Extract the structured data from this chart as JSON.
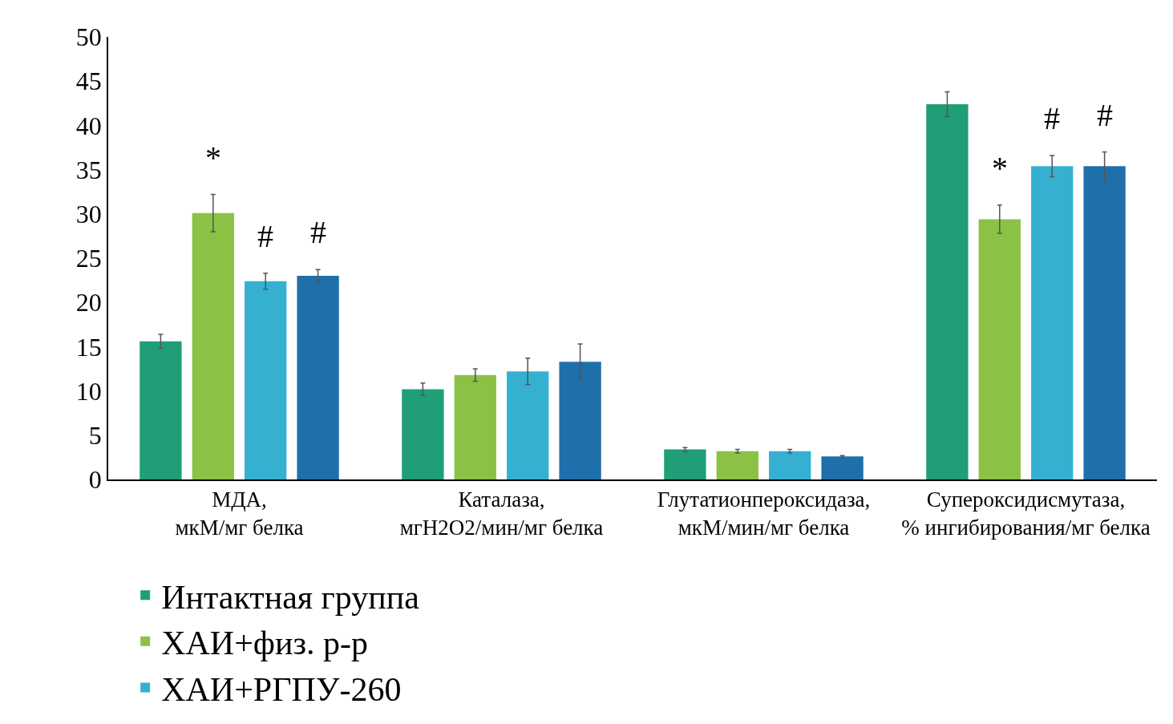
{
  "chart_data": {
    "type": "bar",
    "categories": [
      "МДА, мкМ/мг белка",
      "Каталаза, мгН2О2/мин/мг белка",
      "Глутатионпероксидаза, мкМ/мин/мг белка",
      "Супероксидисмутаза, % ингибирования/мг белка"
    ],
    "series": [
      {
        "name": "Интактная группа",
        "color": "#1f9e78",
        "values": [
          15.6,
          10.2,
          3.4,
          42.4
        ],
        "errors": [
          0.8,
          0.7,
          0.2,
          1.4
        ]
      },
      {
        "name": "ХАИ+физ. р-р",
        "color": "#8bc145",
        "values": [
          30.1,
          11.8,
          3.2,
          29.4
        ],
        "errors": [
          2.1,
          0.7,
          0.2,
          1.6
        ],
        "value_labels": [
          "*",
          null,
          null,
          "*"
        ]
      },
      {
        "name": "ХАИ+РГПУ-260",
        "color": "#35b0d1",
        "values": [
          22.4,
          12.2,
          3.2,
          35.4
        ],
        "errors": [
          0.9,
          1.5,
          0.2,
          1.2
        ],
        "value_labels": [
          "#",
          null,
          null,
          "#"
        ]
      },
      {
        "color": "#1f6fab",
        "values": [
          23.0,
          13.3,
          2.6,
          35.4
        ],
        "errors": [
          0.7,
          2.0,
          0.1,
          1.6
        ],
        "value_labels": [
          "#",
          null,
          null,
          "#"
        ]
      }
    ],
    "ylim": [
      0,
      50
    ],
    "yticks": [
      0,
      5,
      10,
      15,
      20,
      25,
      30,
      35,
      40,
      45,
      50
    ],
    "grid": false,
    "legend": "bottom"
  }
}
